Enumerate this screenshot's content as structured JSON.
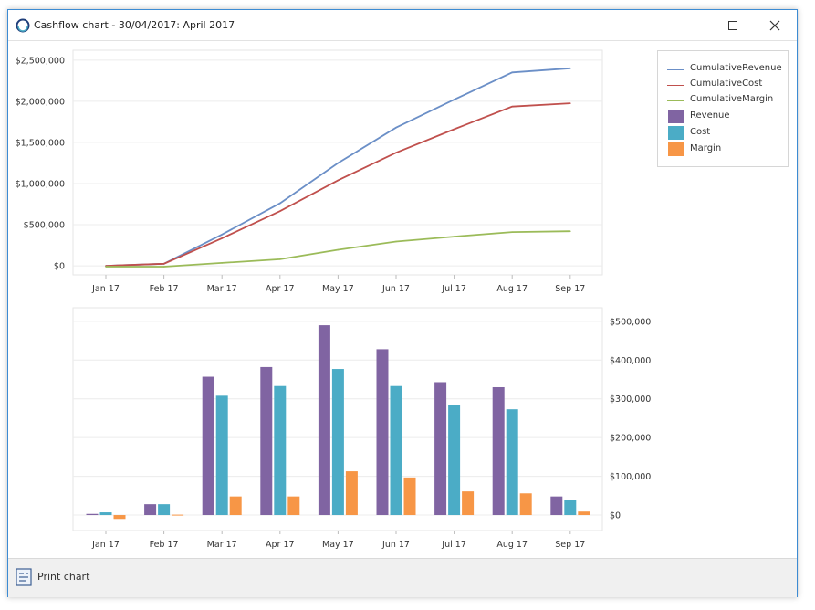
{
  "window": {
    "title": "Cashflow chart - 30/04/2017: April 2017",
    "controls": {
      "minimize": "minimize",
      "maximize": "maximize",
      "close": "close"
    }
  },
  "footer": {
    "print_label": "Print chart"
  },
  "legend": {
    "items": [
      {
        "label": "CumulativeRevenue",
        "kind": "line",
        "color": "#6b8fc7"
      },
      {
        "label": "CumulativeCost",
        "kind": "line",
        "color": "#c0504d"
      },
      {
        "label": "CumulativeMargin",
        "kind": "line",
        "color": "#9bbb59"
      },
      {
        "label": "Revenue",
        "kind": "bar",
        "color": "#8064a2"
      },
      {
        "label": "Cost",
        "kind": "bar",
        "color": "#4bacc6"
      },
      {
        "label": "Margin",
        "kind": "bar",
        "color": "#f79646"
      }
    ]
  },
  "chart_data": [
    {
      "type": "line",
      "title": "",
      "categories": [
        "Jan 17",
        "Feb 17",
        "Mar 17",
        "Apr 17",
        "May 17",
        "Jun 17",
        "Jul 17",
        "Aug 17",
        "Sep 17"
      ],
      "series": [
        {
          "name": "CumulativeRevenue",
          "color": "#6b8fc7",
          "values": [
            0,
            25000,
            380000,
            760000,
            1250000,
            1680000,
            2020000,
            2350000,
            2400000
          ]
        },
        {
          "name": "CumulativeCost",
          "color": "#c0504d",
          "values": [
            0,
            25000,
            335000,
            665000,
            1040000,
            1375000,
            1660000,
            1935000,
            1975000
          ]
        },
        {
          "name": "CumulativeMargin",
          "color": "#9bbb59",
          "values": [
            -10000,
            -10000,
            35000,
            80000,
            195000,
            295000,
            355000,
            410000,
            420000
          ]
        }
      ],
      "ylim": [
        -110000,
        2620000
      ],
      "y_ticks": [
        0,
        500000,
        1000000,
        1500000,
        2000000,
        2500000
      ],
      "y_tick_labels": [
        "$0",
        "$500,000",
        "$1,000,000",
        "$1,500,000",
        "$2,000,000",
        "$2,500,000"
      ],
      "y_axis_side": "left",
      "grid": true
    },
    {
      "type": "bar",
      "title": "",
      "categories": [
        "Jan 17",
        "Feb 17",
        "Mar 17",
        "Apr 17",
        "May 17",
        "Jun 17",
        "Jul 17",
        "Aug 17",
        "Sep 17"
      ],
      "series": [
        {
          "name": "Revenue",
          "color": "#8064a2",
          "values": [
            3000,
            28000,
            357000,
            382000,
            490000,
            428000,
            343000,
            330000,
            48000
          ]
        },
        {
          "name": "Cost",
          "color": "#4bacc6",
          "values": [
            7000,
            28000,
            308000,
            333000,
            377000,
            333000,
            285000,
            273000,
            40000
          ]
        },
        {
          "name": "Margin",
          "color": "#f79646",
          "values": [
            -10000,
            1000,
            48000,
            48000,
            113000,
            97000,
            61000,
            56000,
            9000
          ]
        }
      ],
      "ylim": [
        -40000,
        535000
      ],
      "y_ticks": [
        0,
        100000,
        200000,
        300000,
        400000,
        500000
      ],
      "y_tick_labels": [
        "$0",
        "$100,000",
        "$200,000",
        "$300,000",
        "$400,000",
        "$500,000"
      ],
      "y_axis_side": "right",
      "grid": true
    }
  ]
}
